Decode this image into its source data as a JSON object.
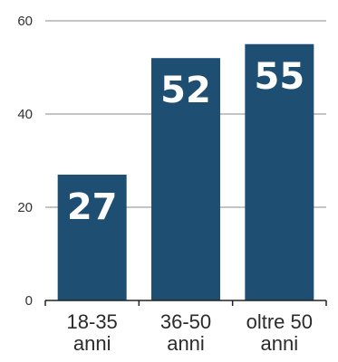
{
  "chart_data": {
    "type": "bar",
    "categories": [
      [
        "18-35",
        "anni"
      ],
      [
        "36-50",
        "anni"
      ],
      [
        "oltre 50",
        "anni"
      ]
    ],
    "values": [
      27,
      52,
      55
    ],
    "value_labels": [
      "27",
      "52",
      "55"
    ],
    "y_ticks": [
      "0",
      "20",
      "40",
      "60"
    ],
    "ylim": [
      0,
      60
    ],
    "grid": true,
    "legend": "none",
    "bar_color": "#1f4e73",
    "grid_color": "#a0a0a0",
    "axis_color": "#222222"
  }
}
